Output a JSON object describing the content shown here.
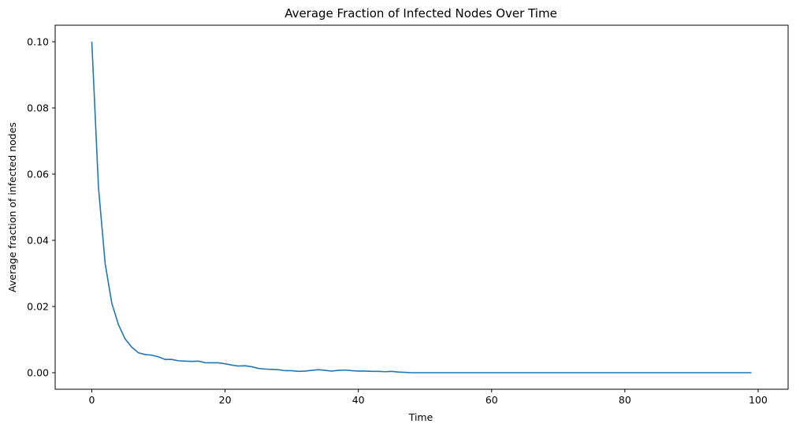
{
  "chart_data": {
    "type": "line",
    "title": "Average Fraction of Infected Nodes Over Time",
    "xlabel": "Time",
    "ylabel": "Average fraction of infected nodes",
    "xlim": [
      -5.5,
      104.5
    ],
    "ylim": [
      -0.005,
      0.105
    ],
    "xticks": [
      0,
      20,
      40,
      60,
      80,
      100
    ],
    "xtick_labels": [
      "0",
      "20",
      "40",
      "60",
      "80",
      "100"
    ],
    "yticks": [
      0.0,
      0.02,
      0.04,
      0.06,
      0.08,
      0.1
    ],
    "ytick_labels": [
      "0.00",
      "0.02",
      "0.04",
      "0.06",
      "0.08",
      "0.10"
    ],
    "grid": false,
    "color": "#1f77b4",
    "series": [
      {
        "x": [
          0,
          1,
          2,
          3,
          4,
          5,
          6,
          7,
          8,
          9,
          10,
          11,
          12,
          13,
          14,
          15,
          16,
          17,
          18,
          19,
          20,
          21,
          22,
          23,
          24,
          25,
          26,
          27,
          28,
          29,
          30,
          31,
          32,
          33,
          34,
          35,
          36,
          37,
          38,
          39,
          40,
          41,
          42,
          43,
          44,
          45,
          46,
          47,
          48,
          49,
          50,
          51,
          52,
          53,
          54,
          55,
          56,
          57,
          58,
          59,
          60,
          61,
          62,
          63,
          64,
          65,
          66,
          67,
          68,
          69,
          70,
          71,
          72,
          73,
          74,
          75,
          76,
          77,
          78,
          79,
          80,
          81,
          82,
          83,
          84,
          85,
          86,
          87,
          88,
          89,
          90,
          91,
          92,
          93,
          94,
          95,
          96,
          97,
          98,
          99
        ],
        "values": [
          0.1,
          0.056,
          0.033,
          0.021,
          0.0145,
          0.0102,
          0.0077,
          0.006,
          0.0055,
          0.0053,
          0.0048,
          0.004,
          0.004,
          0.0036,
          0.0035,
          0.0034,
          0.0035,
          0.003,
          0.003,
          0.003,
          0.0027,
          0.0023,
          0.002,
          0.0021,
          0.0018,
          0.0013,
          0.0011,
          0.001,
          0.0009,
          0.0006,
          0.0006,
          0.0004,
          0.0005,
          0.0007,
          0.0009,
          0.0007,
          0.0005,
          0.0007,
          0.0008,
          0.0006,
          0.0005,
          0.0005,
          0.0004,
          0.0004,
          0.0003,
          0.0004,
          0.0002,
          0.0001,
          0,
          0,
          0,
          0,
          0,
          0,
          0,
          0,
          0,
          0,
          0,
          0,
          0,
          0,
          0,
          0,
          0,
          0,
          0,
          0,
          0,
          0,
          0,
          0,
          0,
          0,
          0,
          0,
          0,
          0,
          0,
          0,
          0,
          0,
          0,
          0,
          0,
          0,
          0,
          0,
          0,
          0,
          0,
          0,
          0,
          0,
          0,
          0,
          0,
          0,
          0,
          0
        ]
      }
    ]
  }
}
